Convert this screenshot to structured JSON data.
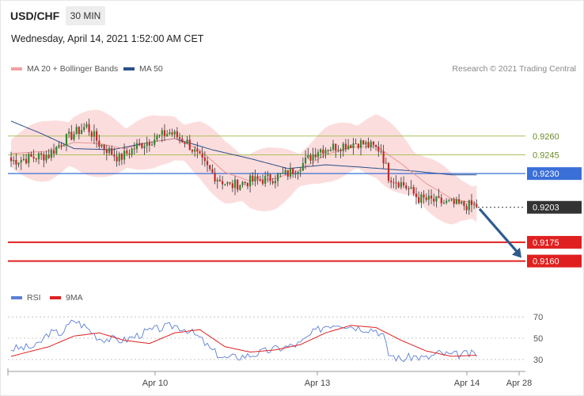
{
  "header": {
    "symbol": "USD/CHF",
    "timeframe": "30 MIN",
    "datetime": "Wednesday, April 14, 2021 1:52:00 AM CET"
  },
  "legend": {
    "ma20": "MA 20 + Bollinger Bands",
    "ma50": "MA 50",
    "ma20_color": "#f08080",
    "ma50_color": "#2b4f8a"
  },
  "credit": "Research © 2021 Trading Central",
  "rsi_legend": {
    "rsi": "RSI",
    "ma9": "9MA",
    "rsi_color": "#5b7fd6",
    "ma9_color": "#e02020"
  },
  "colors": {
    "bull": "#2e8b2e",
    "bear": "#c62828",
    "band": "#fcd7d7",
    "support": "#e02020",
    "pivot": "#3a6fd8",
    "target_line": "#a9c25a",
    "current": "#333333",
    "arrow": "#2e5b8f"
  },
  "chart_data": [
    {
      "type": "candlestick",
      "x_ticks": [
        "Apr 10",
        "Apr 13",
        "Apr 14",
        "Apr 28"
      ],
      "ylim": [
        0.9142,
        0.9296
      ],
      "levels": [
        {
          "label": "0.9260",
          "value": 0.926,
          "role": "resistance"
        },
        {
          "label": "0.9245",
          "value": 0.9245,
          "role": "resistance"
        },
        {
          "label": "0.9230",
          "value": 0.923,
          "role": "pivot"
        },
        {
          "label": "0.9203",
          "value": 0.9203,
          "role": "current"
        },
        {
          "label": "0.9175",
          "value": 0.9175,
          "role": "support"
        },
        {
          "label": "0.9160",
          "value": 0.916,
          "role": "support"
        }
      ],
      "forecast_arrow": {
        "from_value": 0.9203,
        "to_value": 0.916
      },
      "series_anchors": {
        "price": [
          [
            0,
            0.924
          ],
          [
            15,
            0.9245
          ],
          [
            20,
            0.9255
          ],
          [
            25,
            0.9262
          ],
          [
            30,
            0.9268
          ],
          [
            35,
            0.9254
          ],
          [
            43,
            0.9242
          ],
          [
            50,
            0.9252
          ],
          [
            57,
            0.9258
          ],
          [
            63,
            0.9263
          ],
          [
            70,
            0.9255
          ],
          [
            76,
            0.9239
          ],
          [
            81,
            0.9228
          ],
          [
            87,
            0.922
          ],
          [
            95,
            0.9224
          ],
          [
            103,
            0.9226
          ],
          [
            110,
            0.923
          ],
          [
            116,
            0.9238
          ],
          [
            122,
            0.9249
          ],
          [
            130,
            0.9252
          ],
          [
            138,
            0.9255
          ],
          [
            147,
            0.9249
          ],
          [
            150,
            0.9228
          ],
          [
            156,
            0.9221
          ],
          [
            162,
            0.921
          ],
          [
            171,
            0.9207
          ],
          [
            177,
            0.9205
          ],
          [
            185,
            0.9204
          ]
        ],
        "ma20": [
          [
            0,
            0.9246
          ],
          [
            15,
            0.9248
          ],
          [
            25,
            0.9255
          ],
          [
            35,
            0.9254
          ],
          [
            45,
            0.925
          ],
          [
            55,
            0.9255
          ],
          [
            65,
            0.9258
          ],
          [
            75,
            0.9249
          ],
          [
            85,
            0.9231
          ],
          [
            95,
            0.9224
          ],
          [
            105,
            0.9226
          ],
          [
            115,
            0.9233
          ],
          [
            125,
            0.9245
          ],
          [
            135,
            0.9251
          ],
          [
            145,
            0.9252
          ],
          [
            155,
            0.9238
          ],
          [
            165,
            0.9222
          ],
          [
            175,
            0.921
          ],
          [
            185,
            0.9206
          ]
        ],
        "ma50": [
          [
            0,
            0.9272
          ],
          [
            12,
            0.9262
          ],
          [
            25,
            0.925
          ],
          [
            40,
            0.9249
          ],
          [
            55,
            0.9255
          ],
          [
            65,
            0.9258
          ],
          [
            80,
            0.9249
          ],
          [
            95,
            0.9242
          ],
          [
            110,
            0.9234
          ],
          [
            125,
            0.9237
          ],
          [
            140,
            0.9235
          ],
          [
            160,
            0.9232
          ],
          [
            175,
            0.9229
          ],
          [
            180,
            0.9229
          ]
        ]
      }
    },
    {
      "type": "line",
      "name": "RSI",
      "y_ticks": [
        70,
        50,
        30
      ],
      "ylim": [
        24,
        76
      ],
      "rsi": [
        [
          0,
          40
        ],
        [
          10,
          42
        ],
        [
          15,
          55
        ],
        [
          20,
          55
        ],
        [
          25,
          67
        ],
        [
          30,
          60
        ],
        [
          35,
          50
        ],
        [
          45,
          48
        ],
        [
          55,
          57
        ],
        [
          65,
          62
        ],
        [
          70,
          58
        ],
        [
          75,
          50
        ],
        [
          80,
          38
        ],
        [
          85,
          31
        ],
        [
          95,
          34
        ],
        [
          105,
          40
        ],
        [
          110,
          42
        ],
        [
          115,
          45
        ],
        [
          120,
          55
        ],
        [
          125,
          62
        ],
        [
          130,
          64
        ],
        [
          138,
          60
        ],
        [
          145,
          58
        ],
        [
          148,
          52
        ],
        [
          150,
          35
        ],
        [
          155,
          30
        ],
        [
          160,
          33
        ],
        [
          165,
          31
        ],
        [
          170,
          36
        ],
        [
          175,
          34
        ],
        [
          180,
          35
        ],
        [
          185,
          35
        ]
      ],
      "ma9": [
        [
          0,
          33
        ],
        [
          15,
          42
        ],
        [
          25,
          52
        ],
        [
          35,
          55
        ],
        [
          45,
          48
        ],
        [
          55,
          45
        ],
        [
          65,
          55
        ],
        [
          75,
          58
        ],
        [
          85,
          42
        ],
        [
          95,
          37
        ],
        [
          105,
          39
        ],
        [
          115,
          44
        ],
        [
          125,
          55
        ],
        [
          135,
          62
        ],
        [
          145,
          60
        ],
        [
          155,
          48
        ],
        [
          165,
          38
        ],
        [
          175,
          33
        ],
        [
          185,
          34
        ]
      ]
    }
  ]
}
